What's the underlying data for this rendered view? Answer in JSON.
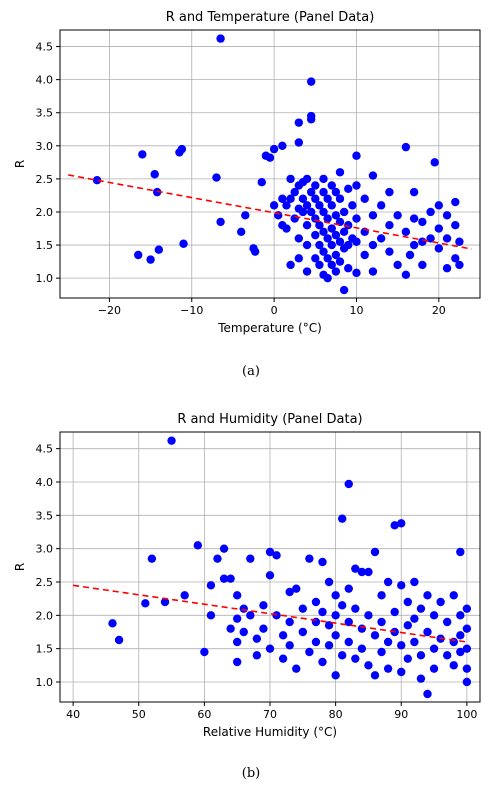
{
  "chart_data": [
    {
      "type": "scatter",
      "title": "R and Temperature (Panel Data)",
      "xlabel": "Temperature (°C)",
      "ylabel": "R",
      "xlim": [
        -26,
        25
      ],
      "ylim": [
        0.7,
        4.75
      ],
      "x_ticks": [
        -20,
        -10,
        0,
        10,
        20
      ],
      "y_ticks": [
        1.0,
        1.5,
        2.0,
        2.5,
        3.0,
        3.5,
        4.0,
        4.5
      ],
      "x_tick_labels": [
        "−20",
        "−10",
        "0",
        "10",
        "20"
      ],
      "y_tick_labels": [
        "1.0",
        "1.5",
        "2.0",
        "2.5",
        "3.0",
        "3.5",
        "4.0",
        "4.5"
      ],
      "grid": true,
      "point_color": "#0000ff",
      "trend_color": "#ff0000",
      "trendline": {
        "x": [
          -25,
          24
        ],
        "y": [
          2.56,
          1.44
        ]
      },
      "points": [
        [
          -21.5,
          2.48
        ],
        [
          -16.5,
          1.35
        ],
        [
          -16,
          2.87
        ],
        [
          -15,
          1.28
        ],
        [
          -14.5,
          2.57
        ],
        [
          -14.2,
          2.3
        ],
        [
          -14,
          1.43
        ],
        [
          -11.5,
          2.9
        ],
        [
          -11.2,
          2.95
        ],
        [
          -11,
          1.52
        ],
        [
          -6.5,
          4.62
        ],
        [
          -7,
          2.52
        ],
        [
          -6.5,
          1.85
        ],
        [
          -4,
          1.7
        ],
        [
          -3.5,
          1.95
        ],
        [
          -2.5,
          1.45
        ],
        [
          -2.3,
          1.4
        ],
        [
          -1.5,
          2.45
        ],
        [
          -1,
          2.85
        ],
        [
          -0.5,
          2.82
        ],
        [
          0,
          2.95
        ],
        [
          0,
          2.1
        ],
        [
          0.5,
          1.95
        ],
        [
          1,
          3.0
        ],
        [
          1,
          2.2
        ],
        [
          1,
          1.8
        ],
        [
          1.5,
          2.1
        ],
        [
          1.5,
          1.75
        ],
        [
          2,
          2.5
        ],
        [
          2,
          2.2
        ],
        [
          2,
          1.2
        ],
        [
          2.5,
          2.3
        ],
        [
          2.5,
          1.9
        ],
        [
          3,
          3.35
        ],
        [
          3,
          3.05
        ],
        [
          3,
          2.4
        ],
        [
          3,
          2.05
        ],
        [
          3,
          1.6
        ],
        [
          3,
          1.3
        ],
        [
          3.5,
          2.45
        ],
        [
          3.5,
          2.2
        ],
        [
          3.5,
          2.0
        ],
        [
          4,
          2.5
        ],
        [
          4,
          2.1
        ],
        [
          4,
          1.8
        ],
        [
          4,
          1.5
        ],
        [
          4,
          1.1
        ],
        [
          4.5,
          3.45
        ],
        [
          4.5,
          3.4
        ],
        [
          4.5,
          3.97
        ],
        [
          4.5,
          2.3
        ],
        [
          4.5,
          2.0
        ],
        [
          5,
          2.4
        ],
        [
          5,
          2.2
        ],
        [
          5,
          1.9
        ],
        [
          5,
          1.65
        ],
        [
          5,
          1.3
        ],
        [
          5.5,
          2.1
        ],
        [
          5.5,
          1.8
        ],
        [
          5.5,
          1.5
        ],
        [
          5.5,
          1.2
        ],
        [
          6,
          2.5
        ],
        [
          6,
          2.3
        ],
        [
          6,
          2.0
        ],
        [
          6,
          1.7
        ],
        [
          6,
          1.4
        ],
        [
          6,
          1.05
        ],
        [
          6.5,
          2.2
        ],
        [
          6.5,
          1.9
        ],
        [
          6.5,
          1.6
        ],
        [
          6.5,
          1.3
        ],
        [
          6.5,
          1.0
        ],
        [
          7,
          2.4
        ],
        [
          7,
          2.1
        ],
        [
          7,
          1.75
        ],
        [
          7,
          1.5
        ],
        [
          7,
          1.2
        ],
        [
          7.5,
          2.3
        ],
        [
          7.5,
          1.95
        ],
        [
          7.5,
          1.65
        ],
        [
          7.5,
          1.35
        ],
        [
          7.5,
          1.1
        ],
        [
          8,
          2.6
        ],
        [
          8,
          2.2
        ],
        [
          8,
          1.85
        ],
        [
          8,
          1.55
        ],
        [
          8,
          1.25
        ],
        [
          8.5,
          2.0
        ],
        [
          8.5,
          1.7
        ],
        [
          8.5,
          1.45
        ],
        [
          8.5,
          0.82
        ],
        [
          9,
          2.35
        ],
        [
          9,
          1.8
        ],
        [
          9,
          1.5
        ],
        [
          9,
          1.15
        ],
        [
          9.5,
          2.1
        ],
        [
          9.5,
          1.6
        ],
        [
          10,
          2.85
        ],
        [
          10,
          2.4
        ],
        [
          10,
          1.9
        ],
        [
          10,
          1.55
        ],
        [
          10,
          1.08
        ],
        [
          11,
          2.2
        ],
        [
          11,
          1.7
        ],
        [
          11,
          1.35
        ],
        [
          12,
          2.55
        ],
        [
          12,
          1.95
        ],
        [
          12,
          1.5
        ],
        [
          12,
          1.1
        ],
        [
          13,
          2.1
        ],
        [
          13,
          1.6
        ],
        [
          14,
          2.3
        ],
        [
          14,
          1.8
        ],
        [
          14,
          1.4
        ],
        [
          15,
          1.95
        ],
        [
          15,
          1.2
        ],
        [
          16,
          2.98
        ],
        [
          16,
          1.7
        ],
        [
          16,
          1.05
        ],
        [
          16.5,
          1.35
        ],
        [
          17,
          2.3
        ],
        [
          17,
          1.9
        ],
        [
          17,
          1.5
        ],
        [
          18,
          1.85
        ],
        [
          18,
          1.55
        ],
        [
          18,
          1.2
        ],
        [
          19,
          2.0
        ],
        [
          19,
          1.6
        ],
        [
          19.5,
          2.75
        ],
        [
          20,
          2.1
        ],
        [
          20,
          1.75
        ],
        [
          20,
          1.45
        ],
        [
          21,
          1.95
        ],
        [
          21,
          1.6
        ],
        [
          21,
          1.15
        ],
        [
          22,
          2.15
        ],
        [
          22,
          1.8
        ],
        [
          22,
          1.3
        ],
        [
          22.5,
          1.55
        ],
        [
          22.5,
          1.2
        ]
      ]
    },
    {
      "type": "scatter",
      "title": "R and Humidity (Panel Data)",
      "xlabel": "Relative Humidity (°C)",
      "ylabel": "R",
      "xlim": [
        38,
        102
      ],
      "ylim": [
        0.7,
        4.75
      ],
      "x_ticks": [
        40,
        50,
        60,
        70,
        80,
        90,
        100
      ],
      "y_ticks": [
        1.0,
        1.5,
        2.0,
        2.5,
        3.0,
        3.5,
        4.0,
        4.5
      ],
      "x_tick_labels": [
        "40",
        "50",
        "60",
        "70",
        "80",
        "90",
        "100"
      ],
      "y_tick_labels": [
        "1.0",
        "1.5",
        "2.0",
        "2.5",
        "3.0",
        "3.5",
        "4.0",
        "4.5"
      ],
      "grid": true,
      "point_color": "#0000ff",
      "trend_color": "#ff0000",
      "trendline": {
        "x": [
          40,
          100
        ],
        "y": [
          2.45,
          1.6
        ]
      },
      "points": [
        [
          46,
          1.88
        ],
        [
          47,
          1.63
        ],
        [
          51,
          2.18
        ],
        [
          52,
          2.85
        ],
        [
          54,
          2.2
        ],
        [
          55,
          4.62
        ],
        [
          57,
          2.3
        ],
        [
          59,
          3.05
        ],
        [
          60,
          1.45
        ],
        [
          61,
          2.45
        ],
        [
          61,
          2.0
        ],
        [
          62,
          2.85
        ],
        [
          63,
          3.0
        ],
        [
          63,
          2.55
        ],
        [
          64,
          1.8
        ],
        [
          64,
          2.55
        ],
        [
          65,
          2.3
        ],
        [
          65,
          1.95
        ],
        [
          65,
          1.6
        ],
        [
          65,
          1.3
        ],
        [
          66,
          2.1
        ],
        [
          66,
          1.75
        ],
        [
          67,
          2.85
        ],
        [
          67,
          2.0
        ],
        [
          68,
          1.65
        ],
        [
          68,
          1.4
        ],
        [
          69,
          2.15
        ],
        [
          69,
          1.8
        ],
        [
          70,
          2.95
        ],
        [
          70,
          2.6
        ],
        [
          70,
          1.5
        ],
        [
          71,
          2.9
        ],
        [
          71,
          2.0
        ],
        [
          72,
          1.7
        ],
        [
          72,
          1.35
        ],
        [
          73,
          2.35
        ],
        [
          73,
          1.9
        ],
        [
          73,
          1.55
        ],
        [
          74,
          2.4
        ],
        [
          74,
          1.2
        ],
        [
          75,
          2.1
        ],
        [
          75,
          1.75
        ],
        [
          76,
          2.85
        ],
        [
          76,
          1.45
        ],
        [
          77,
          2.2
        ],
        [
          77,
          1.9
        ],
        [
          77,
          1.6
        ],
        [
          78,
          2.8
        ],
        [
          78,
          2.05
        ],
        [
          78,
          1.3
        ],
        [
          79,
          2.5
        ],
        [
          79,
          1.85
        ],
        [
          79,
          1.55
        ],
        [
          80,
          2.3
        ],
        [
          80,
          2.0
        ],
        [
          80,
          1.7
        ],
        [
          80,
          1.1
        ],
        [
          81,
          3.45
        ],
        [
          81,
          2.15
        ],
        [
          81,
          1.4
        ],
        [
          82,
          3.97
        ],
        [
          82,
          2.4
        ],
        [
          82,
          1.9
        ],
        [
          82,
          1.6
        ],
        [
          83,
          2.7
        ],
        [
          83,
          2.1
        ],
        [
          83,
          1.35
        ],
        [
          84,
          2.65
        ],
        [
          84,
          1.8
        ],
        [
          84,
          1.5
        ],
        [
          85,
          2.65
        ],
        [
          85,
          2.0
        ],
        [
          85,
          1.25
        ],
        [
          86,
          2.95
        ],
        [
          86,
          1.7
        ],
        [
          86,
          1.1
        ],
        [
          87,
          2.3
        ],
        [
          87,
          1.9
        ],
        [
          87,
          1.45
        ],
        [
          88,
          2.5
        ],
        [
          88,
          1.6
        ],
        [
          88,
          1.2
        ],
        [
          89,
          3.35
        ],
        [
          89,
          2.05
        ],
        [
          89,
          1.75
        ],
        [
          90,
          3.38
        ],
        [
          90,
          2.45
        ],
        [
          90,
          1.55
        ],
        [
          90,
          1.15
        ],
        [
          91,
          2.2
        ],
        [
          91,
          1.85
        ],
        [
          91,
          1.35
        ],
        [
          92,
          2.5
        ],
        [
          92,
          1.95
        ],
        [
          92,
          1.6
        ],
        [
          93,
          2.1
        ],
        [
          93,
          1.4
        ],
        [
          93,
          1.05
        ],
        [
          94,
          2.3
        ],
        [
          94,
          1.75
        ],
        [
          94,
          0.82
        ],
        [
          95,
          2.0
        ],
        [
          95,
          1.5
        ],
        [
          95,
          1.2
        ],
        [
          96,
          2.2
        ],
        [
          96,
          1.65
        ],
        [
          97,
          1.9
        ],
        [
          97,
          1.4
        ],
        [
          98,
          2.3
        ],
        [
          98,
          1.6
        ],
        [
          98,
          1.25
        ],
        [
          99,
          2.95
        ],
        [
          99,
          2.0
        ],
        [
          99,
          1.7
        ],
        [
          99,
          1.45
        ],
        [
          100,
          2.1
        ],
        [
          100,
          1.8
        ],
        [
          100,
          1.5
        ],
        [
          100,
          1.2
        ],
        [
          100,
          1.0
        ]
      ]
    }
  ],
  "captions": [
    "(a)",
    "(b)"
  ]
}
